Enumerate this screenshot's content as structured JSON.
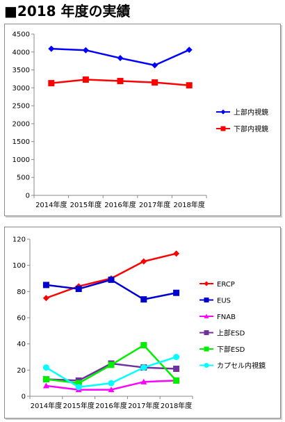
{
  "page_title": "■2018 年度の実績",
  "chart_data": [
    {
      "type": "line",
      "categories": [
        "2014年度",
        "2015年度",
        "2016年度",
        "2017年度",
        "2018年度"
      ],
      "ylim": [
        0,
        4500
      ],
      "yticks": [
        0,
        500,
        1000,
        1500,
        2000,
        2500,
        3000,
        3500,
        4000,
        4500
      ],
      "grid": false,
      "legend": "right",
      "series": [
        {
          "name": "上部内視鏡",
          "color": "#0000ff",
          "marker": "diamond",
          "values": [
            4090,
            4050,
            3830,
            3630,
            4060
          ]
        },
        {
          "name": "下部内視鏡",
          "color": "#ff0000",
          "marker": "square",
          "values": [
            3130,
            3230,
            3190,
            3150,
            3070
          ]
        }
      ]
    },
    {
      "type": "line",
      "categories": [
        "2014年度",
        "2015年度",
        "2016年度",
        "2017年度",
        "2018年度"
      ],
      "ylim": [
        0,
        120
      ],
      "yticks": [
        0,
        20,
        40,
        60,
        80,
        100,
        120
      ],
      "grid": false,
      "legend": "right",
      "series": [
        {
          "name": "ERCP",
          "color": "#ff0000",
          "marker": "diamond",
          "values": [
            75,
            84,
            90,
            103,
            109
          ]
        },
        {
          "name": "EUS",
          "color": "#0000cc",
          "marker": "square",
          "values": [
            85,
            82,
            89,
            74,
            79
          ]
        },
        {
          "name": "FNAB",
          "color": "#ff00ff",
          "marker": "triangle",
          "values": [
            8,
            5,
            5,
            11,
            12
          ]
        },
        {
          "name": "上部ESD",
          "color": "#7030a0",
          "marker": "square",
          "values": [
            13,
            12,
            25,
            22,
            21
          ]
        },
        {
          "name": "下部ESD",
          "color": "#00ee00",
          "marker": "square",
          "values": [
            13,
            10,
            24,
            39,
            12
          ]
        },
        {
          "name": "カプセル内視鏡",
          "color": "#00ffff",
          "marker": "circle",
          "values": [
            22,
            7,
            10,
            22,
            30
          ]
        }
      ]
    }
  ]
}
